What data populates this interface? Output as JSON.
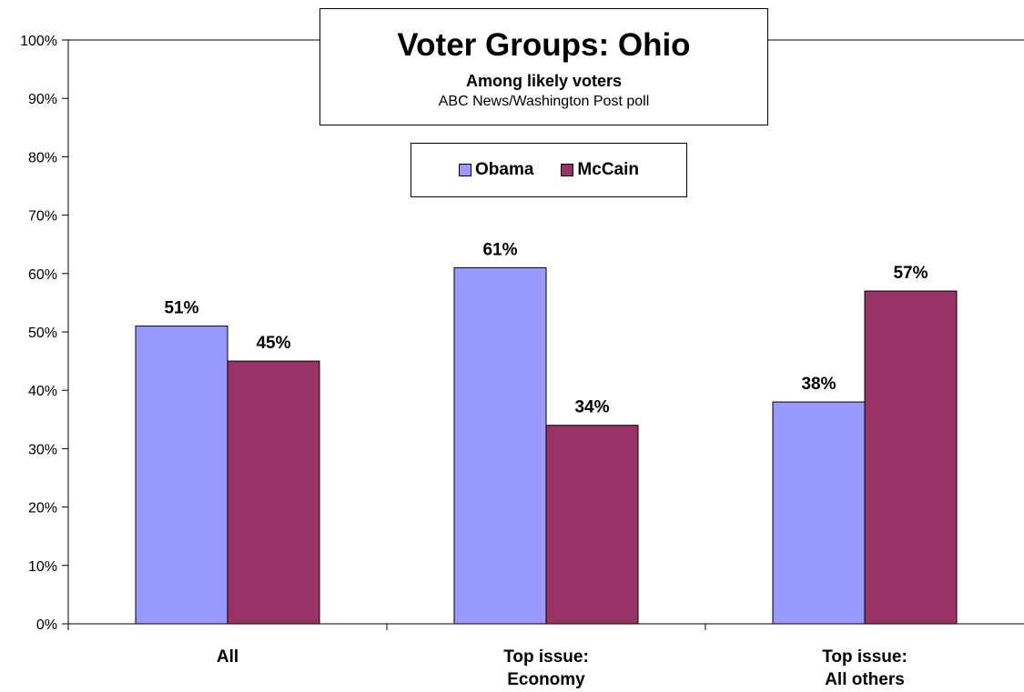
{
  "chart_data": {
    "type": "bar",
    "title": "Voter Groups: Ohio",
    "subtitle": "Among likely voters",
    "source": "ABC News/Washington Post poll",
    "categories": [
      [
        "All"
      ],
      [
        "Top issue:",
        "Economy"
      ],
      [
        "Top issue:",
        "All others"
      ]
    ],
    "series": [
      {
        "name": "Obama",
        "color": "#9999ff",
        "values": [
          51,
          61,
          38
        ],
        "labels": [
          "51%",
          "61%",
          "38%"
        ]
      },
      {
        "name": "McCain",
        "color": "#993366",
        "values": [
          45,
          34,
          57
        ],
        "labels": [
          "45%",
          "34%",
          "57%"
        ]
      }
    ],
    "ylim": [
      0,
      100
    ],
    "yticks": [
      "0%",
      "10%",
      "20%",
      "30%",
      "40%",
      "50%",
      "60%",
      "70%",
      "80%",
      "90%",
      "100%"
    ],
    "xlabel": "",
    "ylabel": "",
    "grid": true,
    "legend_position": "top-center"
  }
}
